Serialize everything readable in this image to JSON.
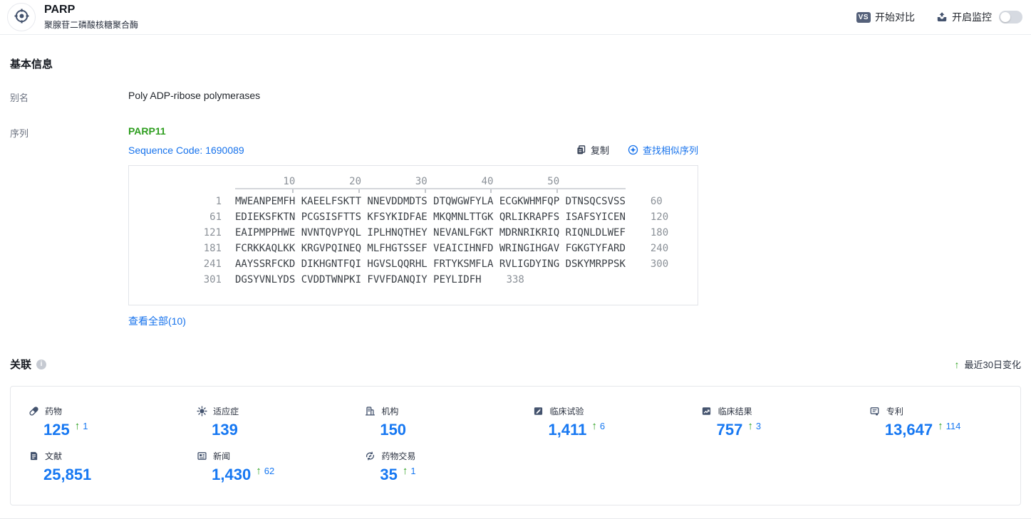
{
  "header": {
    "title": "PARP",
    "subtitle": "聚腺苷二磷酸核糖聚合酶",
    "compare_badge": "VS",
    "compare_label": "开始对比",
    "monitor_label": "开启监控",
    "monitor_on": false
  },
  "basic_info": {
    "section_title": "基本信息",
    "alias_label": "别名",
    "alias_value": "Poly ADP-ribose polymerases",
    "sequence_label": "序列",
    "sequence_name": "PARP11",
    "sequence_code": "Sequence Code: 1690089",
    "copy_label": "复制",
    "find_similar_label": "查找相似序列",
    "view_all_label": "查看全部(10)",
    "ruler": "        10         20         30         40         50",
    "sequence_rows": [
      {
        "start": "1",
        "seq": "MWEANPEMFH KAEELFSKTT NNEVDDMDTS DTQWGWFYLA ECGKWHMFQP DTNSQCSVSS",
        "end": "60"
      },
      {
        "start": "61",
        "seq": "EDIEKSFKTN PCGSISFTTS KFSYKIDFAE MKQMNLTTGK QRLIKRAPFS ISAFSYICEN",
        "end": "120"
      },
      {
        "start": "121",
        "seq": "EAIPMPPHWE NVNTQVPYQL IPLHNQTHEY NEVANLFGKT MDRNRIKRIQ RIQNLDLWEF",
        "end": "180"
      },
      {
        "start": "181",
        "seq": "FCRKKAQLKK KRGVPQINEQ MLFHGTSSEF VEAICIHNFD WRINGIHGAV FGKGTYFARD",
        "end": "240"
      },
      {
        "start": "241",
        "seq": "AAYSSRFCKD DIKHGNTFQI HGVSLQQRHL FRTYKSMFLA RVLIGDYING DSKYMRPPSK",
        "end": "300"
      },
      {
        "start": "301",
        "seq": "DGSYVNLYDS CVDDTWNPKI FVVFDANQIY PEYLIDFH",
        "end": "338"
      }
    ]
  },
  "associations": {
    "section_title": "关联",
    "change_note": "最近30日变化",
    "stats": [
      {
        "icon": "pill-icon",
        "label": "药物",
        "value": "125",
        "change": "1"
      },
      {
        "icon": "virus-icon",
        "label": "适应症",
        "value": "139",
        "change": ""
      },
      {
        "icon": "building-icon",
        "label": "机构",
        "value": "150",
        "change": ""
      },
      {
        "icon": "clinical-trial-icon",
        "label": "临床试验",
        "value": "1,411",
        "change": "6"
      },
      {
        "icon": "clinical-result-icon",
        "label": "临床结果",
        "value": "757",
        "change": "3"
      },
      {
        "icon": "patent-icon",
        "label": "专利",
        "value": "13,647",
        "change": "114"
      },
      {
        "icon": "literature-icon",
        "label": "文献",
        "value": "25,851",
        "change": ""
      },
      {
        "icon": "news-icon",
        "label": "新闻",
        "value": "1,430",
        "change": "62"
      },
      {
        "icon": "drug-deal-icon",
        "label": "药物交易",
        "value": "35",
        "change": "1"
      }
    ]
  },
  "colors": {
    "accent_blue": "#1778f2",
    "link_blue": "#1672ec",
    "green": "#2ea121",
    "icon_navy": "#44536e",
    "sequence_name_green": "#2e9e1f"
  }
}
